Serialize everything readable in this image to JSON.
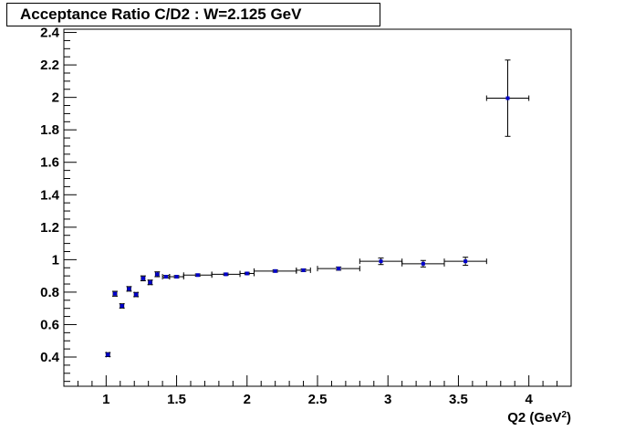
{
  "chart_data": {
    "type": "scatter",
    "title": "Acceptance Ratio C/D2 : W=2.125 GeV",
    "xlabel": "Q2 (GeV",
    "xlabel_sup": "2",
    "xlabel_close": ")",
    "ylabel": "",
    "xlim": [
      0.7,
      4.3
    ],
    "ylim": [
      0.22,
      2.42
    ],
    "xticks": [
      1,
      1.5,
      2,
      2.5,
      3,
      3.5,
      4
    ],
    "xtick_labels": [
      "1",
      "1.5",
      "2",
      "2.5",
      "3",
      "3.5",
      "4"
    ],
    "yticks": [
      0.4,
      0.6,
      0.8,
      1,
      1.2,
      1.4,
      1.6,
      1.8,
      2,
      2.2,
      2.4
    ],
    "ytick_labels": [
      "0.4",
      "0.6",
      "0.8",
      "1",
      "1.2",
      "1.4",
      "1.6",
      "1.8",
      "2",
      "2.2",
      "2.4"
    ],
    "grid": false,
    "legend": "none",
    "marker_color": "#0000cc",
    "error_bar_color": "#000000",
    "points": [
      {
        "x": 1.0125,
        "y": 0.415,
        "xerr": 0.0125,
        "yerr": 0.012
      },
      {
        "x": 1.0625,
        "y": 0.79,
        "xerr": 0.0125,
        "yerr": 0.015
      },
      {
        "x": 1.1125,
        "y": 0.715,
        "xerr": 0.0125,
        "yerr": 0.013
      },
      {
        "x": 1.1625,
        "y": 0.82,
        "xerr": 0.0125,
        "yerr": 0.014
      },
      {
        "x": 1.2125,
        "y": 0.785,
        "xerr": 0.0125,
        "yerr": 0.013
      },
      {
        "x": 1.2625,
        "y": 0.885,
        "xerr": 0.0125,
        "yerr": 0.015
      },
      {
        "x": 1.3125,
        "y": 0.86,
        "xerr": 0.0125,
        "yerr": 0.014
      },
      {
        "x": 1.3625,
        "y": 0.91,
        "xerr": 0.0125,
        "yerr": 0.015
      },
      {
        "x": 1.425,
        "y": 0.895,
        "xerr": 0.025,
        "yerr": 0.008
      },
      {
        "x": 1.5,
        "y": 0.895,
        "xerr": 0.05,
        "yerr": 0.007
      },
      {
        "x": 1.65,
        "y": 0.905,
        "xerr": 0.1,
        "yerr": 0.007
      },
      {
        "x": 1.85,
        "y": 0.91,
        "xerr": 0.1,
        "yerr": 0.007
      },
      {
        "x": 2.0,
        "y": 0.915,
        "xerr": 0.05,
        "yerr": 0.007
      },
      {
        "x": 2.2,
        "y": 0.93,
        "xerr": 0.15,
        "yerr": 0.007
      },
      {
        "x": 2.4,
        "y": 0.935,
        "xerr": 0.05,
        "yerr": 0.008
      },
      {
        "x": 2.65,
        "y": 0.945,
        "xerr": 0.15,
        "yerr": 0.01
      },
      {
        "x": 2.95,
        "y": 0.99,
        "xerr": 0.15,
        "yerr": 0.02
      },
      {
        "x": 3.25,
        "y": 0.975,
        "xerr": 0.15,
        "yerr": 0.02
      },
      {
        "x": 3.55,
        "y": 0.99,
        "xerr": 0.15,
        "yerr": 0.025
      },
      {
        "x": 3.85,
        "y": 1.995,
        "xerr": 0.15,
        "yerr": 0.235
      }
    ]
  }
}
